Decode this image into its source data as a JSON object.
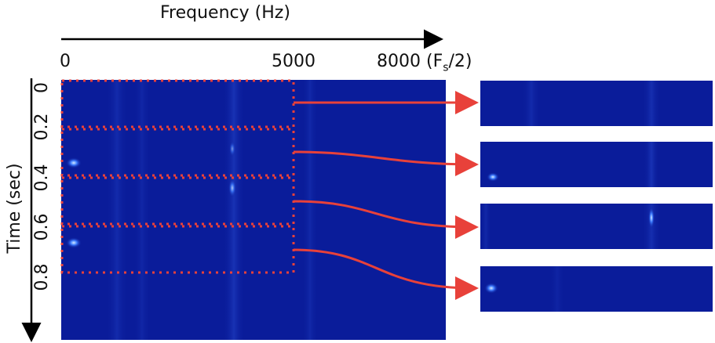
{
  "axes": {
    "frequency_label": "Frequency (Hz)",
    "frequency_ticks": [
      "0",
      "5000",
      "8000 (F"
    ],
    "frequency_tick_sub": "s",
    "frequency_tick_tail": "/2)",
    "time_label": "Time (sec)",
    "time_ticks": [
      "0",
      "0.2",
      "0.4",
      "0.6",
      "0.8"
    ]
  },
  "colors": {
    "spectrogram": "#0a1c9a",
    "box": "#e8413a",
    "arrow": "#e8413a",
    "axis": "#000000"
  }
}
